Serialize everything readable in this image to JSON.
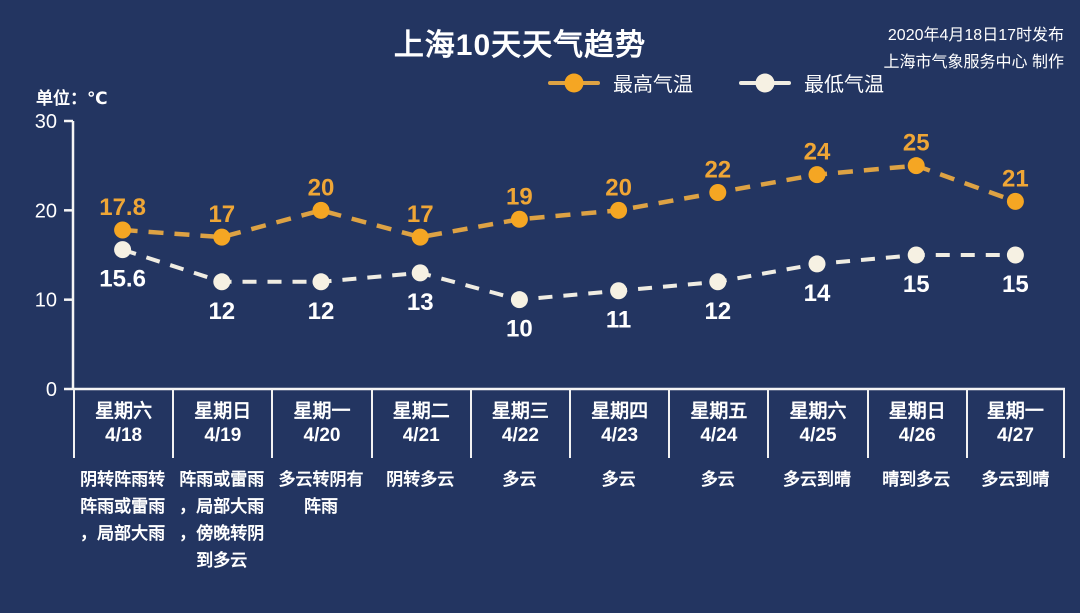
{
  "header": {
    "title": "上海10天天气趋势",
    "publish_line1": "2020年4月18日17时发布",
    "publish_line2": "上海市气象服务中心 制作"
  },
  "unit_label": "单位：℃",
  "colors": {
    "background": "#233561",
    "axis": "#f5f5f5",
    "high_line": "#dda244",
    "high_dot": "#f5a623",
    "high_label": "#efa636",
    "low_line": "#efece2",
    "low_dot": "#f6f1e3",
    "low_label": "#ffffff"
  },
  "legend": [
    {
      "label": "最高气温",
      "line_color": "#dda244",
      "dot_color": "#f5a623"
    },
    {
      "label": "最低气温",
      "line_color": "#efece2",
      "dot_color": "#f6f1e3"
    }
  ],
  "chart_data": {
    "type": "line",
    "title": "上海10天天气趋势",
    "ylabel": "单位：℃",
    "line_style": "dashed",
    "grid": false,
    "legend_position": "top",
    "ylim": [
      0,
      30
    ],
    "yticks": [
      0,
      10,
      20,
      30
    ],
    "categories": [
      "4/18",
      "4/19",
      "4/20",
      "4/21",
      "4/22",
      "4/23",
      "4/24",
      "4/25",
      "4/26",
      "4/27"
    ],
    "series": [
      {
        "name": "最高气温",
        "values": [
          17.8,
          17,
          20,
          17,
          19,
          20,
          22,
          24,
          25,
          21
        ]
      },
      {
        "name": "最低气温",
        "values": [
          15.6,
          12,
          12,
          13,
          10,
          11,
          12,
          14,
          15,
          15
        ]
      }
    ]
  },
  "days": [
    {
      "day": "星期六",
      "date": "4/18",
      "weather": "阴转阵雨转\n阵雨或雷雨\n，局部大雨"
    },
    {
      "day": "星期日",
      "date": "4/19",
      "weather": "阵雨或雷雨\n，局部大雨\n，傍晚转阴\n到多云"
    },
    {
      "day": "星期一",
      "date": "4/20",
      "weather": "多云转阴有\n阵雨"
    },
    {
      "day": "星期二",
      "date": "4/21",
      "weather": "阴转多云"
    },
    {
      "day": "星期三",
      "date": "4/22",
      "weather": "多云"
    },
    {
      "day": "星期四",
      "date": "4/23",
      "weather": "多云"
    },
    {
      "day": "星期五",
      "date": "4/24",
      "weather": "多云"
    },
    {
      "day": "星期六",
      "date": "4/25",
      "weather": "多云到晴"
    },
    {
      "day": "星期日",
      "date": "4/26",
      "weather": "晴到多云"
    },
    {
      "day": "星期一",
      "date": "4/27",
      "weather": "多云到晴"
    }
  ]
}
